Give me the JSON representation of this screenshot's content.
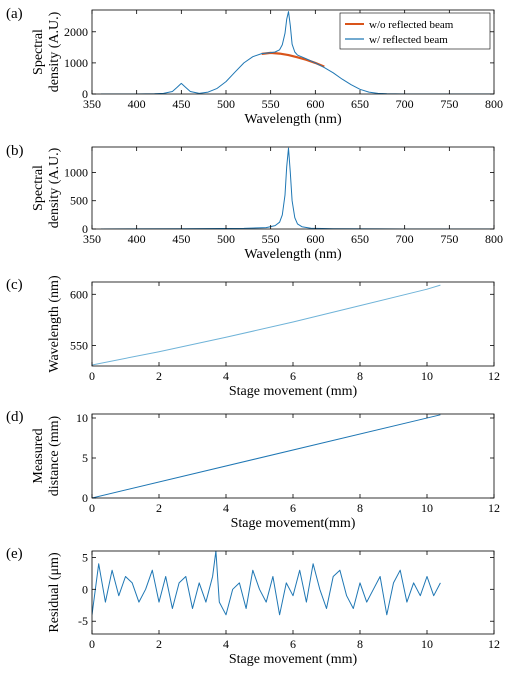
{
  "colors": {
    "blue": "#1f77b4",
    "lightblue": "#6fb3d8",
    "orange": "#d9541a",
    "axis": "#000000"
  },
  "chart_data": [
    {
      "panel": "(a)",
      "type": "line",
      "xlabel": "Wavelength (nm)",
      "ylabel": [
        "Spectral",
        "density (A.U.)"
      ],
      "xlim": [
        350,
        800
      ],
      "ylim": [
        0,
        2700
      ],
      "xticks": [
        350,
        400,
        450,
        500,
        550,
        600,
        650,
        700,
        750,
        800
      ],
      "yticks": [
        0,
        1000,
        2000
      ],
      "legend": {
        "placement": "top-right",
        "entries": [
          "w/o reflected beam",
          "w/ reflected beam"
        ]
      },
      "series": [
        {
          "name": "w/o reflected beam",
          "color": "orange",
          "x": [
            540,
            550,
            560,
            570,
            580,
            590,
            600,
            610
          ],
          "y": [
            1290,
            1320,
            1300,
            1250,
            1180,
            1100,
            1000,
            880
          ]
        },
        {
          "name": "w/ reflected beam",
          "color": "blue",
          "x": [
            360,
            380,
            400,
            420,
            430,
            440,
            445,
            450,
            455,
            460,
            470,
            480,
            490,
            500,
            510,
            520,
            530,
            540,
            550,
            555,
            560,
            563,
            566,
            568,
            570,
            572,
            574,
            577,
            580,
            590,
            600,
            610,
            620,
            630,
            640,
            650,
            660,
            670,
            680,
            700,
            750,
            800
          ],
          "y": [
            0,
            0,
            0,
            5,
            20,
            80,
            210,
            340,
            210,
            80,
            20,
            60,
            180,
            400,
            700,
            1000,
            1200,
            1300,
            1330,
            1350,
            1420,
            1580,
            1950,
            2400,
            2650,
            2200,
            1600,
            1350,
            1250,
            1130,
            1000,
            850,
            680,
            480,
            300,
            150,
            60,
            20,
            5,
            0,
            0,
            0
          ]
        }
      ]
    },
    {
      "panel": "(b)",
      "type": "line",
      "xlabel": "Wavelength (nm)",
      "ylabel": [
        "Spectral",
        "density (A.U.)"
      ],
      "xlim": [
        350,
        800
      ],
      "ylim": [
        0,
        1450
      ],
      "xticks": [
        350,
        400,
        450,
        500,
        550,
        600,
        650,
        700,
        750,
        800
      ],
      "yticks": [
        0,
        500,
        1000
      ],
      "series": [
        {
          "color": "blue",
          "x": [
            360,
            450,
            520,
            545,
            555,
            560,
            563,
            566,
            568,
            570,
            572,
            574,
            577,
            580,
            585,
            595,
            620,
            700,
            800
          ],
          "y": [
            0,
            5,
            10,
            25,
            60,
            120,
            250,
            600,
            1100,
            1430,
            1000,
            500,
            200,
            90,
            40,
            15,
            5,
            0,
            0
          ]
        }
      ]
    },
    {
      "panel": "(c)",
      "type": "line",
      "xlabel": "Stage movement (mm)",
      "ylabel": [
        "Wavelength (nm)"
      ],
      "xlim": [
        0,
        12
      ],
      "ylim": [
        530,
        612
      ],
      "xticks": [
        0,
        2,
        4,
        6,
        8,
        10,
        12
      ],
      "yticks": [
        550,
        600
      ],
      "series": [
        {
          "color": "lightblue",
          "x": [
            0,
            2,
            4,
            6,
            8,
            10,
            10.4
          ],
          "y": [
            531,
            544,
            558,
            573,
            589,
            605,
            609
          ]
        }
      ]
    },
    {
      "panel": "(d)",
      "type": "line",
      "xlabel": "Stage movement(mm)",
      "ylabel": [
        "Measured",
        "distance (mm)"
      ],
      "xlim": [
        0,
        12
      ],
      "ylim": [
        0,
        10.5
      ],
      "xticks": [
        0,
        2,
        4,
        6,
        8,
        10,
        12
      ],
      "yticks": [
        0,
        5,
        10
      ],
      "series": [
        {
          "color": "blue",
          "x": [
            0,
            10.4
          ],
          "y": [
            0,
            10.4
          ]
        }
      ]
    },
    {
      "panel": "(e)",
      "type": "line",
      "xlabel": "Stage movement (mm)",
      "ylabel": [
        "Residual (μm)"
      ],
      "xlim": [
        0,
        12
      ],
      "ylim": [
        -7,
        6
      ],
      "xticks": [
        0,
        2,
        4,
        6,
        8,
        10,
        12
      ],
      "yticks": [
        -5,
        0,
        5
      ],
      "series": [
        {
          "color": "blue",
          "x": [
            0,
            0.2,
            0.4,
            0.6,
            0.8,
            1.0,
            1.2,
            1.4,
            1.6,
            1.8,
            2.0,
            2.2,
            2.4,
            2.6,
            2.8,
            3.0,
            3.2,
            3.4,
            3.6,
            3.7,
            3.8,
            4.0,
            4.2,
            4.4,
            4.6,
            4.8,
            5.0,
            5.2,
            5.4,
            5.6,
            5.8,
            6.0,
            6.2,
            6.4,
            6.6,
            6.8,
            7.0,
            7.2,
            7.4,
            7.6,
            7.8,
            8.0,
            8.2,
            8.4,
            8.6,
            8.8,
            9.0,
            9.2,
            9.4,
            9.6,
            9.8,
            10.0,
            10.2,
            10.4
          ],
          "y": [
            -4,
            4,
            -2,
            3,
            -1,
            2,
            1,
            -2,
            0,
            3,
            -2,
            2,
            -3,
            1,
            2,
            -3,
            1,
            -2,
            2,
            6,
            -2,
            -4,
            0,
            1,
            -3,
            3,
            0,
            -2,
            2,
            -4,
            1,
            -1,
            3,
            -2,
            4,
            0,
            -3,
            2,
            3,
            -1,
            -3,
            1,
            -2,
            0,
            2,
            -4,
            1,
            3,
            -2,
            1,
            -1,
            2,
            -1,
            1
          ]
        }
      ]
    }
  ]
}
